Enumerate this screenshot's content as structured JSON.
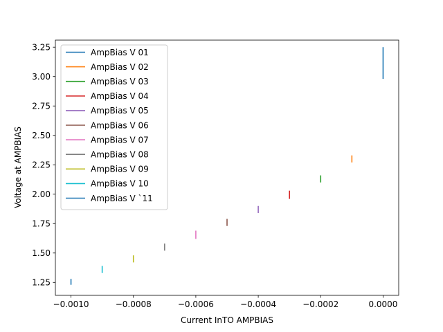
{
  "chart_data": {
    "type": "line",
    "title": "",
    "xlabel": "Current InTO AMPBIAS",
    "ylabel": "Voltage at AMPBIAS",
    "xlim": [
      -0.00105,
      5e-05
    ],
    "ylim": [
      1.14,
      3.31
    ],
    "x_ticks": [
      -0.001,
      -0.0008,
      -0.0006,
      -0.0004,
      -0.0002,
      0.0
    ],
    "x_tick_labels": [
      "−0.0010",
      "−0.0008",
      "−0.0006",
      "−0.0004",
      "−0.0002",
      "0.0000"
    ],
    "y_ticks": [
      1.25,
      1.5,
      1.75,
      2.0,
      2.25,
      2.5,
      2.75,
      3.0,
      3.25
    ],
    "y_tick_labels": [
      "1.25",
      "1.50",
      "1.75",
      "2.00",
      "2.25",
      "2.50",
      "2.75",
      "3.00",
      "3.25"
    ],
    "grid": false,
    "legend_position": "top-left",
    "series": [
      {
        "name": "AmpBias V 01",
        "color": "#1f77b4",
        "x": [
          -0.001,
          -0.001
        ],
        "y": [
          1.23,
          1.28
        ]
      },
      {
        "name": "AmpBias V 02",
        "color": "#ff7f0e",
        "x": [
          -0.0001,
          -0.0001
        ],
        "y": [
          2.27,
          2.33
        ]
      },
      {
        "name": "AmpBias V 03",
        "color": "#2ca02c",
        "x": [
          -0.0002,
          -0.0002
        ],
        "y": [
          2.1,
          2.16
        ]
      },
      {
        "name": "AmpBias V 04",
        "color": "#d62728",
        "x": [
          -0.0003,
          -0.0003
        ],
        "y": [
          1.96,
          2.03
        ]
      },
      {
        "name": "AmpBias V 05",
        "color": "#9467bd",
        "x": [
          -0.0004,
          -0.0004
        ],
        "y": [
          1.84,
          1.9
        ]
      },
      {
        "name": "AmpBias V 06",
        "color": "#8c564b",
        "x": [
          -0.0005,
          -0.0005
        ],
        "y": [
          1.73,
          1.79
        ]
      },
      {
        "name": "AmpBias V 07",
        "color": "#e377c2",
        "x": [
          -0.0006,
          -0.0006
        ],
        "y": [
          1.62,
          1.69
        ]
      },
      {
        "name": "AmpBias V 08",
        "color": "#7f7f7f",
        "x": [
          -0.0007,
          -0.0007
        ],
        "y": [
          1.52,
          1.58
        ]
      },
      {
        "name": "AmpBias V 09",
        "color": "#bcbd22",
        "x": [
          -0.0008,
          -0.0008
        ],
        "y": [
          1.42,
          1.48
        ]
      },
      {
        "name": "AmpBias V 10",
        "color": "#17becf",
        "x": [
          -0.0009,
          -0.0009
        ],
        "y": [
          1.33,
          1.39
        ]
      },
      {
        "name": "AmpBias V `11",
        "color": "#1f77b4",
        "x": [
          0.0,
          0.0
        ],
        "y": [
          2.98,
          3.25
        ]
      }
    ]
  }
}
